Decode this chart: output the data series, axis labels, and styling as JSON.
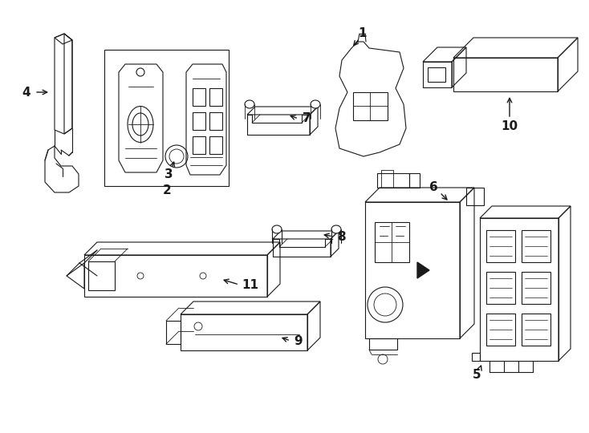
{
  "background_color": "#ffffff",
  "line_color": "#1a1a1a",
  "line_width": 0.8,
  "fig_width": 7.34,
  "fig_height": 5.4,
  "dpi": 100
}
